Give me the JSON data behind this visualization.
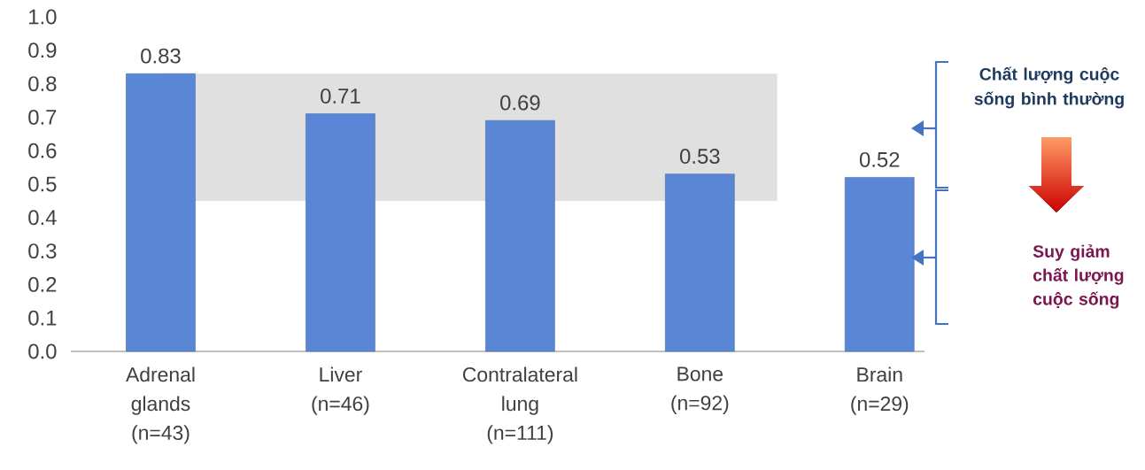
{
  "chart_data": {
    "type": "bar",
    "categories": [
      "Adrenal glands (n=43)",
      "Liver (n=46)",
      "Contralateral lung (n=111)",
      "Bone (n=92)",
      "Brain (n=29)"
    ],
    "values": [
      0.83,
      0.71,
      0.69,
      0.53,
      0.52
    ],
    "color": "#5a86d6",
    "ylim": [
      0,
      1.0
    ],
    "yticks": [
      {
        "value": 0,
        "label": "0.0"
      },
      0.1,
      0.2,
      0.3,
      0.4,
      0.5,
      0.6,
      0.7,
      0.8,
      0.9,
      {
        "value": 1.0,
        "label": "1.0"
      }
    ],
    "data_labels": true,
    "grid": false,
    "bands": [
      {
        "axis": "y",
        "from": 0.45,
        "to": 0.83,
        "color": "#e0e0e0"
      }
    ],
    "annotations": [
      "Chất lượng cuộc sống bình thường",
      "Suy giảm chất lượng cuộc sống"
    ]
  }
}
